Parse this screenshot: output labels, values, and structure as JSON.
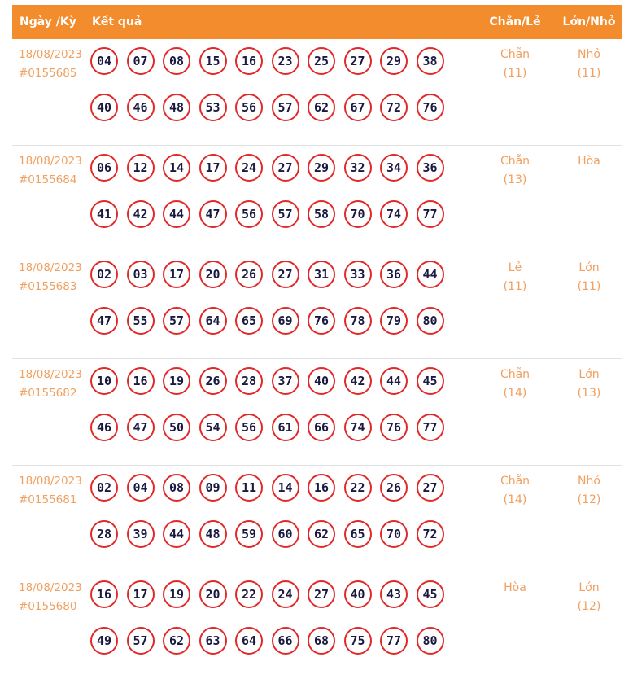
{
  "header": {
    "date": "Ngày /Kỳ",
    "result": "Kết quả",
    "even_odd": "Chẵn/Lẻ",
    "big_small": "Lớn/Nhỏ"
  },
  "rows": [
    {
      "date": "18/08/2023",
      "id": "#0155685",
      "numbers": [
        "04",
        "07",
        "08",
        "15",
        "16",
        "23",
        "25",
        "27",
        "29",
        "38",
        "40",
        "46",
        "48",
        "53",
        "56",
        "57",
        "62",
        "67",
        "72",
        "76"
      ],
      "even_odd": "Chẵn",
      "even_odd_count": "(11)",
      "big_small": "Nhỏ",
      "big_small_count": "(11)"
    },
    {
      "date": "18/08/2023",
      "id": "#0155684",
      "numbers": [
        "06",
        "12",
        "14",
        "17",
        "24",
        "27",
        "29",
        "32",
        "34",
        "36",
        "41",
        "42",
        "44",
        "47",
        "56",
        "57",
        "58",
        "70",
        "74",
        "77"
      ],
      "even_odd": "Chẵn",
      "even_odd_count": "(13)",
      "big_small": "Hòa",
      "big_small_count": ""
    },
    {
      "date": "18/08/2023",
      "id": "#0155683",
      "numbers": [
        "02",
        "03",
        "17",
        "20",
        "26",
        "27",
        "31",
        "33",
        "36",
        "44",
        "47",
        "55",
        "57",
        "64",
        "65",
        "69",
        "76",
        "78",
        "79",
        "80"
      ],
      "even_odd": "Lẻ",
      "even_odd_count": "(11)",
      "big_small": "Lớn",
      "big_small_count": "(11)"
    },
    {
      "date": "18/08/2023",
      "id": "#0155682",
      "numbers": [
        "10",
        "16",
        "19",
        "26",
        "28",
        "37",
        "40",
        "42",
        "44",
        "45",
        "46",
        "47",
        "50",
        "54",
        "56",
        "61",
        "66",
        "74",
        "76",
        "77"
      ],
      "even_odd": "Chẵn",
      "even_odd_count": "(14)",
      "big_small": "Lớn",
      "big_small_count": "(13)"
    },
    {
      "date": "18/08/2023",
      "id": "#0155681",
      "numbers": [
        "02",
        "04",
        "08",
        "09",
        "11",
        "14",
        "16",
        "22",
        "26",
        "27",
        "28",
        "39",
        "44",
        "48",
        "59",
        "60",
        "62",
        "65",
        "70",
        "72"
      ],
      "even_odd": "Chẵn",
      "even_odd_count": "(14)",
      "big_small": "Nhỏ",
      "big_small_count": "(12)"
    },
    {
      "date": "18/08/2023",
      "id": "#0155680",
      "numbers": [
        "16",
        "17",
        "19",
        "20",
        "22",
        "24",
        "27",
        "40",
        "43",
        "45",
        "49",
        "57",
        "62",
        "63",
        "64",
        "66",
        "68",
        "75",
        "77",
        "80"
      ],
      "even_odd": "Hòa",
      "even_odd_count": "",
      "big_small": "Lớn",
      "big_small_count": "(12)"
    }
  ]
}
